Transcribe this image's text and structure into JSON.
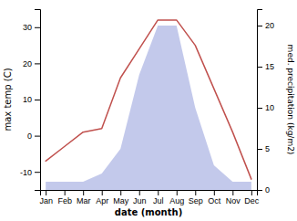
{
  "chart_data": {
    "type": "line",
    "xlabel": "date (month)",
    "ylabel": "max temp (C)",
    "y2label": "med. precipitation (kg/m2)",
    "categories": [
      "Jan",
      "Feb",
      "Mar",
      "Apr",
      "May",
      "Jun",
      "Jul",
      "Aug",
      "Sep",
      "Oct",
      "Nov",
      "Dec"
    ],
    "series": [
      {
        "type": "area",
        "axis": "y2",
        "color": "#b8c0e8",
        "values": [
          1,
          1,
          1,
          2,
          5,
          14,
          20,
          20,
          10,
          3,
          1,
          1
        ]
      },
      {
        "type": "line",
        "color": "#c0504d",
        "values": [
          -7,
          -3,
          1,
          2,
          16,
          24,
          32,
          32,
          25,
          13,
          1,
          -12
        ]
      }
    ],
    "ylim": [
      -15,
      35
    ],
    "yticks": [
      -10,
      0,
      10,
      20,
      30
    ],
    "y2lim": [
      0,
      22
    ],
    "y2ticks": [
      0,
      5,
      10,
      15,
      20
    ],
    "grid": false
  }
}
